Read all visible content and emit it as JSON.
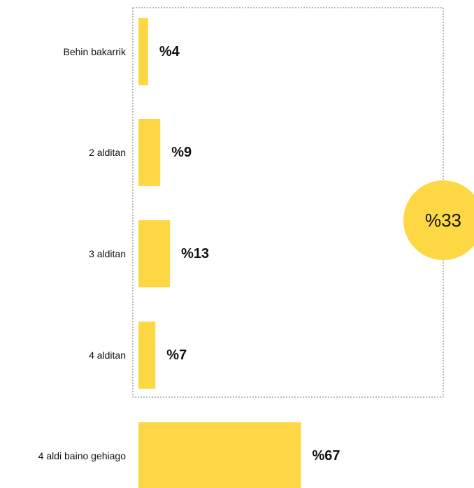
{
  "chart_data": {
    "type": "bar",
    "orientation": "horizontal",
    "categories": [
      "Behin bakarrik",
      "2 alditan",
      "3 alditan",
      "4 alditan",
      "4 aldi baino gehiago"
    ],
    "values": [
      4,
      9,
      13,
      7,
      67
    ],
    "value_labels": [
      "%4",
      "%9",
      "%13",
      "%7",
      "%67"
    ],
    "bar_color": "#fdd744",
    "grouped_categories": [
      "Behin bakarrik",
      "2 alditan",
      "3 alditan",
      "4 alditan"
    ],
    "group_total": 33,
    "group_total_label": "%33",
    "group_border": "dotted",
    "title": "",
    "xlabel": "",
    "ylabel": "",
    "xlim": [
      0,
      100
    ],
    "grid": false,
    "legend": "none"
  }
}
